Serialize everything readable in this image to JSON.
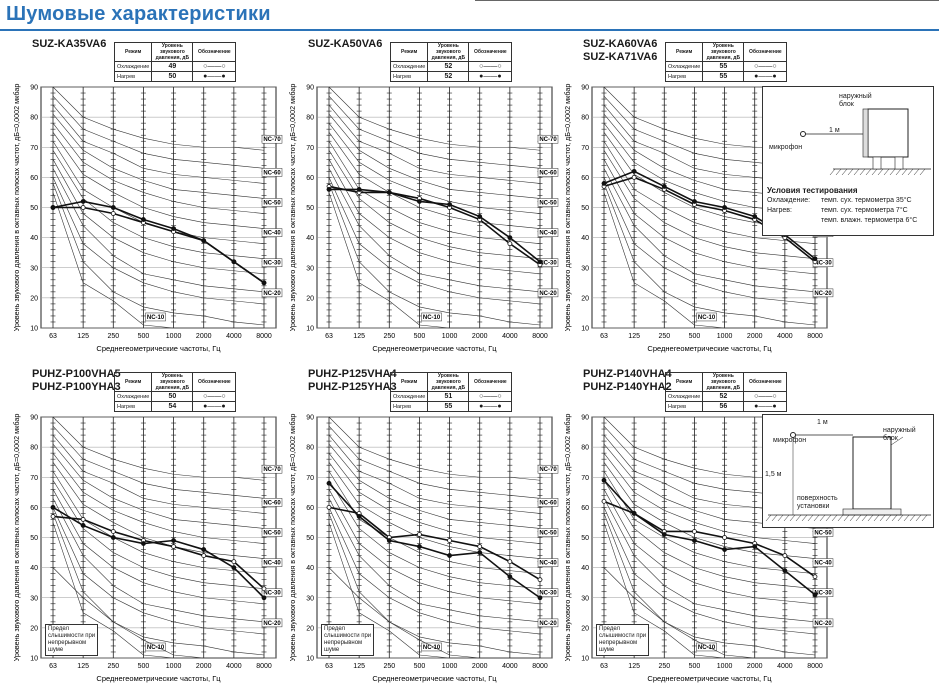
{
  "page": {
    "title": "Шумовые характеристики"
  },
  "common": {
    "ylabel": "Уровень звукового давления в октавных полосах частот, дБ=0,0002 мкбар",
    "xlabel": "Среднегеометрические частоты, Гц",
    "mode_header": "Режим",
    "level_header": "Уровень звукового давления, дБ",
    "symbol_header": "Обозначение",
    "cooling": "Охлаждение",
    "heating": "Нагрев",
    "threshold_note": "Предел слышимости при непрерывном шуме",
    "nc_labels": [
      "NC-10",
      "NC-20",
      "NC-30",
      "NC-40",
      "NC-50",
      "NC-60",
      "NC-70"
    ]
  },
  "inset1": {
    "outdoor_unit": "наружный блок",
    "distance": "1 м",
    "microphone": "микрофон",
    "conditions_title": "Условия тестирования",
    "cooling_label": "Охлаждение:",
    "cooling_value": "темп. сух. термометра 35°C",
    "heating_label": "Нагрев:",
    "heating_value": "темп. сух. термометра 7°C",
    "heating_value2": "темп. влажн. термометра 6°C"
  },
  "inset2": {
    "distance": "1 м",
    "microphone": "микрофон",
    "outdoor_unit": "наружный блок",
    "height": "1,5 м",
    "surface": "поверхность установки"
  },
  "chart_data": [
    {
      "type": "line",
      "model": "SUZ-KA35VA6",
      "cooling_db": "49",
      "heating_db": "50",
      "x": [
        "63",
        "125",
        "250",
        "500",
        "1000",
        "2000",
        "4000",
        "8000"
      ],
      "ylim": [
        10,
        90
      ],
      "series": [
        {
          "name": "Охлаждение",
          "values": [
            50,
            50,
            48,
            45,
            42,
            39,
            32,
            25
          ]
        },
        {
          "name": "Нагрев",
          "values": [
            50,
            52,
            50,
            46,
            43,
            39,
            32,
            25
          ]
        }
      ]
    },
    {
      "type": "line",
      "model": "SUZ-KA50VA6",
      "cooling_db": "52",
      "heating_db": "52",
      "x": [
        "63",
        "125",
        "250",
        "500",
        "1000",
        "2000",
        "4000",
        "8000"
      ],
      "ylim": [
        10,
        90
      ],
      "series": [
        {
          "name": "Охлаждение",
          "values": [
            57,
            55,
            55,
            53,
            50,
            46,
            38,
            31
          ]
        },
        {
          "name": "Нагрев",
          "values": [
            56,
            56,
            55,
            52,
            51,
            47,
            40,
            32
          ]
        }
      ]
    },
    {
      "type": "line",
      "model": "SUZ-KA60VA6\nSUZ-KA71VA6",
      "cooling_db": "55",
      "heating_db": "55",
      "x": [
        "63",
        "125",
        "250",
        "500",
        "1000",
        "2000",
        "4000",
        "8000"
      ],
      "ylim": [
        10,
        90
      ],
      "series": [
        {
          "name": "Охлаждение",
          "values": [
            57,
            60,
            56,
            51,
            49,
            46,
            40,
            32
          ]
        },
        {
          "name": "Нагрев",
          "values": [
            58,
            62,
            57,
            52,
            50,
            47,
            41,
            33
          ]
        }
      ]
    },
    {
      "type": "line",
      "model": "PUHZ-P100VHA5\nPUHZ-P100YHA3",
      "cooling_db": "50",
      "heating_db": "54",
      "x": [
        "63",
        "125",
        "250",
        "500",
        "1000",
        "2000",
        "4000",
        "8000"
      ],
      "ylim": [
        10,
        90
      ],
      "series": [
        {
          "name": "Охлаждение",
          "values": [
            57,
            56,
            52,
            49,
            47,
            44,
            42,
            33
          ]
        },
        {
          "name": "Нагрев",
          "values": [
            60,
            54,
            50,
            48,
            49,
            46,
            40,
            30
          ]
        }
      ]
    },
    {
      "type": "line",
      "model": "PUHZ-P125VHA4\nPUHZ-P125YHA3",
      "cooling_db": "51",
      "heating_db": "55",
      "x": [
        "63",
        "125",
        "250",
        "500",
        "1000",
        "2000",
        "4000",
        "8000"
      ],
      "ylim": [
        10,
        90
      ],
      "series": [
        {
          "name": "Охлаждение",
          "values": [
            60,
            58,
            50,
            51,
            49,
            47,
            42,
            36
          ]
        },
        {
          "name": "Нагрев",
          "values": [
            68,
            57,
            49,
            47,
            44,
            45,
            37,
            30
          ]
        }
      ]
    },
    {
      "type": "line",
      "model": "PUHZ-P140VHA4\nPUHZ-P140YHA2",
      "cooling_db": "52",
      "heating_db": "56",
      "x": [
        "63",
        "125",
        "250",
        "500",
        "1000",
        "2000",
        "4000",
        "8000"
      ],
      "ylim": [
        10,
        90
      ],
      "series": [
        {
          "name": "Охлаждение",
          "values": [
            62,
            58,
            52,
            52,
            50,
            48,
            44,
            37
          ]
        },
        {
          "name": "Нагрев",
          "values": [
            69,
            58,
            51,
            49,
            46,
            47,
            39,
            31
          ]
        }
      ]
    }
  ]
}
